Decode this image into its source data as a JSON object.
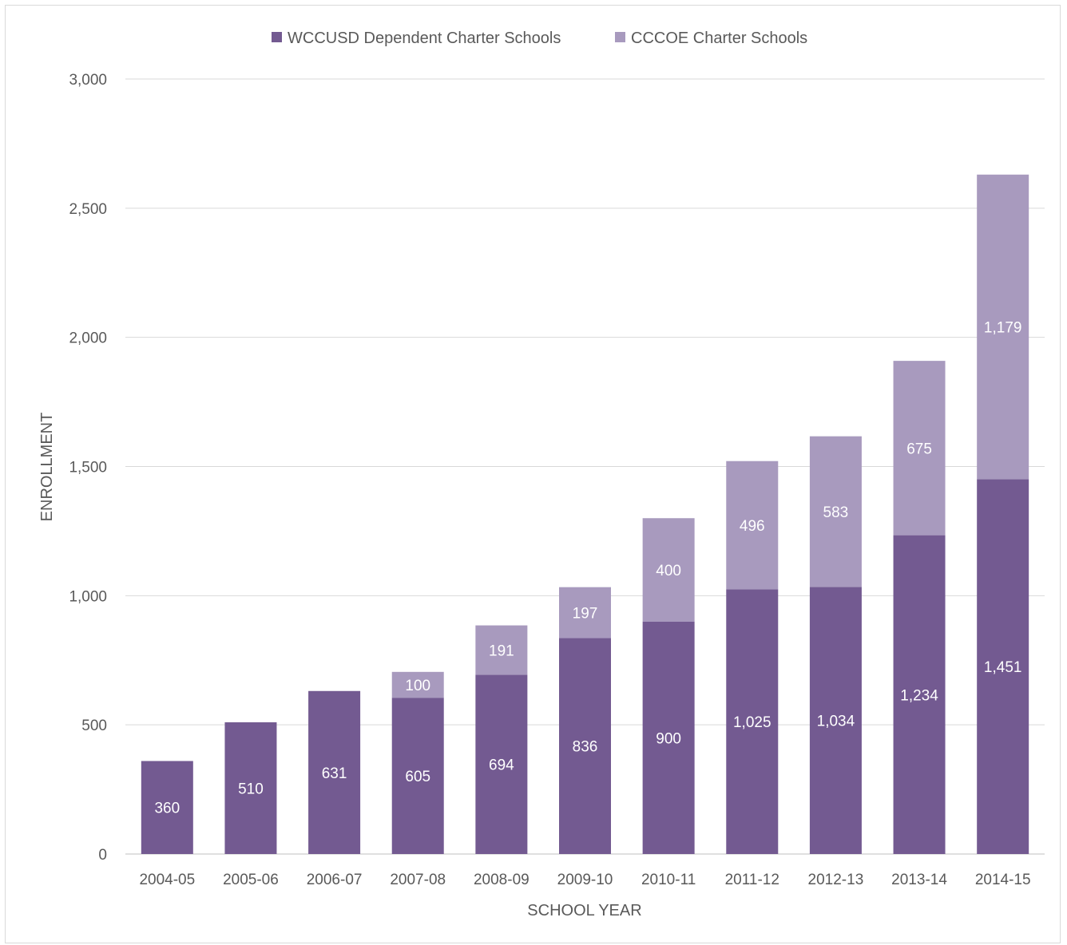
{
  "chart_data": {
    "type": "bar",
    "stacked": true,
    "categories": [
      "2004-05",
      "2005-06",
      "2006-07",
      "2007-08",
      "2008-09",
      "2009-10",
      "2010-11",
      "2011-12",
      "2012-13",
      "2013-14",
      "2014-15"
    ],
    "series": [
      {
        "name": "WCCUSD Dependent Charter Schools",
        "color": "#735a91",
        "values": [
          360,
          510,
          631,
          605,
          694,
          836,
          900,
          1025,
          1034,
          1234,
          1451
        ],
        "labels": [
          "360",
          "510",
          "631",
          "605",
          "694",
          "836",
          "900",
          "1,025",
          "1,034",
          "1,234",
          "1,451"
        ]
      },
      {
        "name": "CCCOE Charter Schools",
        "color": "#a89abe",
        "values": [
          0,
          0,
          0,
          100,
          191,
          197,
          400,
          496,
          583,
          675,
          1179
        ],
        "labels": [
          "",
          "",
          "",
          "100",
          "191",
          "197",
          "400",
          "496",
          "583",
          "675",
          "1,179"
        ]
      }
    ],
    "xlabel": "SCHOOL YEAR",
    "ylabel": "ENROLLMENT",
    "ylim": [
      0,
      3000
    ],
    "yticks": [
      0,
      500,
      1000,
      1500,
      2000,
      2500,
      3000
    ],
    "ytick_labels": [
      "0",
      "500",
      "1,000",
      "1,500",
      "2,000",
      "2,500",
      "3,000"
    ],
    "grid": true,
    "legend_position": "top"
  }
}
